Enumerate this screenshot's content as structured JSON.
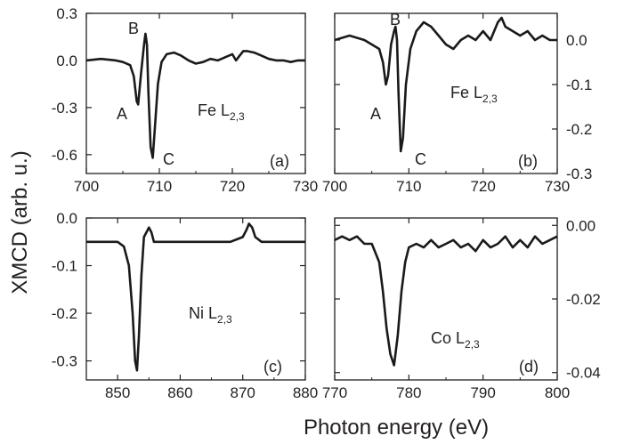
{
  "figure": {
    "ylabel": "XMCD (arb. u.)",
    "xlabel": "Photon energy (eV)"
  },
  "chart_data": [
    {
      "type": "line",
      "panel": "(a)",
      "element_label": {
        "main": "Fe L",
        "sub": "2,3"
      },
      "peak_labels": [
        "A",
        "B",
        "C"
      ],
      "y_axis_side": "left",
      "xlim": [
        700,
        730
      ],
      "ylim": [
        -0.72,
        0.3
      ],
      "x_ticks": [
        700,
        710,
        720,
        730
      ],
      "x_tick_labels": [
        "700",
        "710",
        "720",
        "730"
      ],
      "y_ticks": [
        0.3,
        0.0,
        -0.3,
        -0.6
      ],
      "y_tick_labels": [
        "0.3",
        "0.0",
        "-0.3",
        "-0.6"
      ],
      "grid": false,
      "series": [
        {
          "x": [
            700,
            702,
            704,
            705,
            706,
            706.5,
            706.9,
            707.1,
            707.5,
            707.9,
            708.1,
            708.3,
            708.5,
            708.8,
            709.1,
            709.4,
            709.8,
            710.3,
            711,
            712,
            713,
            714,
            715,
            716,
            717,
            718,
            719,
            720,
            720.5,
            721,
            721.5,
            722,
            723,
            724,
            725,
            726,
            727,
            728,
            729,
            730
          ],
          "y": [
            0.0,
            0.01,
            0.0,
            -0.01,
            -0.03,
            -0.1,
            -0.26,
            -0.28,
            -0.08,
            0.1,
            0.17,
            0.1,
            -0.2,
            -0.55,
            -0.62,
            -0.42,
            -0.15,
            -0.01,
            0.04,
            0.05,
            0.03,
            0.0,
            -0.02,
            -0.01,
            0.01,
            0.0,
            0.02,
            0.04,
            0.0,
            0.03,
            0.06,
            0.06,
            0.05,
            0.03,
            0.01,
            0.0,
            0.0,
            -0.01,
            0.0,
            0.0
          ]
        }
      ]
    },
    {
      "type": "line",
      "panel": "(b)",
      "element_label": {
        "main": "Fe L",
        "sub": "2,3"
      },
      "peak_labels": [
        "A",
        "B",
        "C"
      ],
      "y_axis_side": "right",
      "xlim": [
        700,
        730
      ],
      "ylim": [
        -0.3,
        0.06
      ],
      "x_ticks": [
        700,
        710,
        720,
        730
      ],
      "x_tick_labels": [
        "700",
        "710",
        "720",
        "730"
      ],
      "y_ticks": [
        0.0,
        -0.1,
        -0.2,
        -0.3
      ],
      "y_tick_labels": [
        "0.0",
        "-0.1",
        "-0.2",
        "-0.3"
      ],
      "grid": false,
      "series": [
        {
          "x": [
            700,
            702,
            704,
            705,
            706,
            706.5,
            706.9,
            707.2,
            707.6,
            708,
            708.2,
            708.4,
            708.6,
            708.9,
            709.2,
            709.6,
            710.2,
            711,
            712,
            713,
            714,
            715,
            716,
            717,
            718,
            719,
            720,
            721,
            722,
            722.5,
            723,
            724,
            725,
            726,
            727,
            728,
            729,
            730
          ],
          "y": [
            0.0,
            0.01,
            0.0,
            -0.01,
            -0.02,
            -0.05,
            -0.1,
            -0.08,
            -0.01,
            0.02,
            0.03,
            0.0,
            -0.12,
            -0.25,
            -0.22,
            -0.1,
            -0.02,
            0.02,
            0.04,
            0.03,
            0.01,
            -0.01,
            -0.02,
            0.0,
            0.01,
            0.0,
            0.02,
            0.0,
            0.04,
            0.05,
            0.03,
            0.02,
            0.01,
            0.02,
            0.0,
            0.01,
            0.0,
            0.0
          ]
        }
      ]
    },
    {
      "type": "line",
      "panel": "(c)",
      "element_label": {
        "main": "Ni L",
        "sub": "2,3"
      },
      "y_axis_side": "left",
      "xlim": [
        845,
        880
      ],
      "ylim": [
        -0.34,
        0.0
      ],
      "x_ticks": [
        850,
        860,
        870,
        880
      ],
      "x_tick_labels": [
        "850",
        "860",
        "870",
        "880"
      ],
      "y_ticks": [
        0.0,
        -0.1,
        -0.2,
        -0.3
      ],
      "y_tick_labels": [
        "0.0",
        "-0.1",
        "-0.2",
        "-0.3"
      ],
      "grid": false,
      "series": [
        {
          "x": [
            845,
            847,
            849,
            850,
            851,
            851.8,
            852.4,
            852.8,
            853.1,
            853.4,
            853.8,
            854.2,
            854.6,
            855,
            855.4,
            855.8,
            856.5,
            858,
            860,
            862,
            864,
            866,
            868,
            869,
            870,
            870.6,
            871,
            871.5,
            872,
            873,
            875,
            877,
            880
          ],
          "y": [
            -0.05,
            -0.05,
            -0.05,
            -0.05,
            -0.06,
            -0.1,
            -0.2,
            -0.3,
            -0.32,
            -0.25,
            -0.12,
            -0.04,
            -0.03,
            -0.02,
            -0.03,
            -0.05,
            -0.05,
            -0.05,
            -0.05,
            -0.05,
            -0.05,
            -0.05,
            -0.05,
            -0.045,
            -0.04,
            -0.025,
            -0.012,
            -0.02,
            -0.04,
            -0.05,
            -0.05,
            -0.05,
            -0.05
          ]
        }
      ]
    },
    {
      "type": "line",
      "panel": "(d)",
      "element_label": {
        "main": "Co L",
        "sub": "2,3"
      },
      "y_axis_side": "right",
      "xlim": [
        770,
        800
      ],
      "ylim": [
        -0.042,
        0.002
      ],
      "x_ticks": [
        770,
        780,
        790,
        800
      ],
      "x_tick_labels": [
        "770",
        "780",
        "790",
        "800"
      ],
      "y_ticks": [
        0.0,
        -0.02,
        -0.04
      ],
      "y_tick_labels": [
        "0.00",
        "-0.02",
        "-0.04"
      ],
      "grid": false,
      "series": [
        {
          "x": [
            770,
            771,
            772,
            773,
            774,
            775,
            776,
            776.5,
            777,
            777.5,
            778,
            778.5,
            779,
            779.5,
            780,
            781,
            782,
            783,
            784,
            785,
            786,
            787,
            788,
            789,
            790,
            791,
            792,
            793,
            794,
            795,
            796,
            797,
            798,
            799,
            800
          ],
          "y": [
            -0.004,
            -0.003,
            -0.004,
            -0.003,
            -0.005,
            -0.005,
            -0.01,
            -0.018,
            -0.028,
            -0.035,
            -0.038,
            -0.03,
            -0.018,
            -0.01,
            -0.006,
            -0.005,
            -0.006,
            -0.004,
            -0.006,
            -0.005,
            -0.004,
            -0.006,
            -0.005,
            -0.007,
            -0.004,
            -0.006,
            -0.005,
            -0.003,
            -0.006,
            -0.004,
            -0.006,
            -0.003,
            -0.005,
            -0.004,
            -0.003
          ]
        }
      ]
    }
  ]
}
